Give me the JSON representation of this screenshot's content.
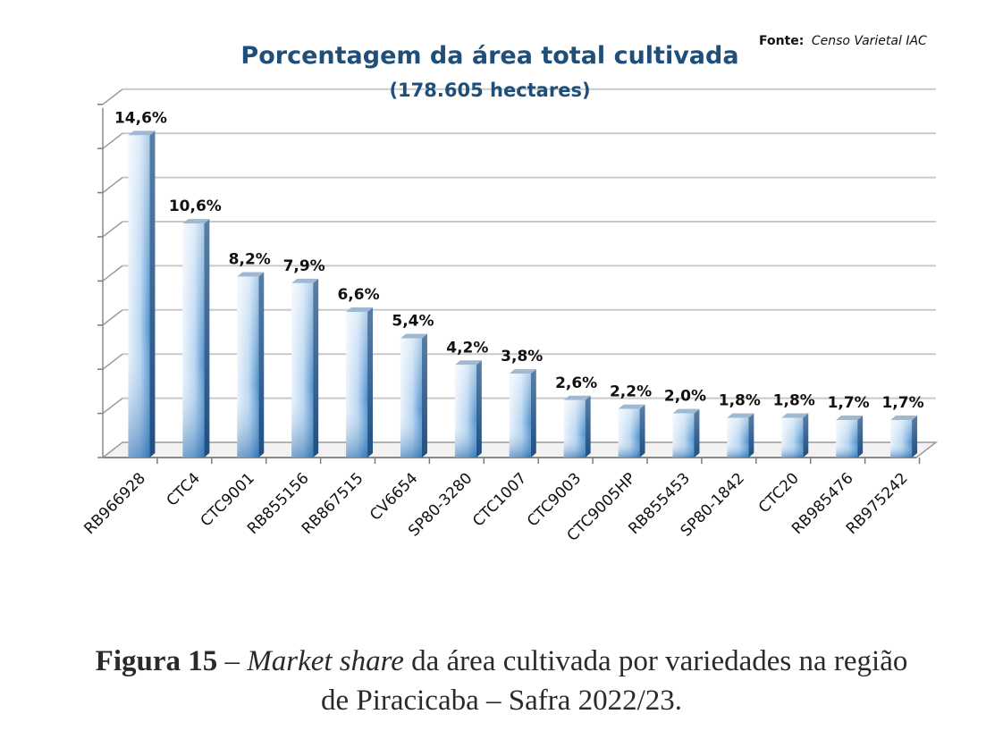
{
  "chart_data": {
    "type": "bar",
    "title": "Porcentagem da área total cultivada",
    "subtitle": "(178.605 hectares)",
    "source_label": "Fonte:",
    "source_text": "Censo Varietal IAC",
    "categories": [
      "RB966928",
      "CTC4",
      "CTC9001",
      "RB855156",
      "RB867515",
      "CV6654",
      "SP80-3280",
      "CTC1007",
      "CTC9003",
      "CTC9005HP",
      "RB855453",
      "SP80-1842",
      "CTC20",
      "RB985476",
      "RB975242"
    ],
    "values": [
      14.6,
      10.6,
      8.2,
      7.9,
      6.6,
      5.4,
      4.2,
      3.8,
      2.6,
      2.2,
      2.0,
      1.8,
      1.8,
      1.7,
      1.7
    ],
    "value_labels": [
      "14,6%",
      "10,6%",
      "8,2%",
      "7,9%",
      "6,6%",
      "5,4%",
      "4,2%",
      "3,8%",
      "2,6%",
      "2,2%",
      "2,0%",
      "1,8%",
      "1,8%",
      "1,7%",
      "1,7%"
    ],
    "ylim": [
      0,
      16
    ],
    "y_tick_step": 2,
    "grid": true,
    "bar_color": "#3f86c6",
    "title_color": "#1f4e79"
  },
  "caption": {
    "label": "Figura 15",
    "dash": " – ",
    "italic": "Market share",
    "line1_rest": " da área cultivada por variedades na região",
    "line2": "de Piracicaba – Safra 2022/23."
  }
}
